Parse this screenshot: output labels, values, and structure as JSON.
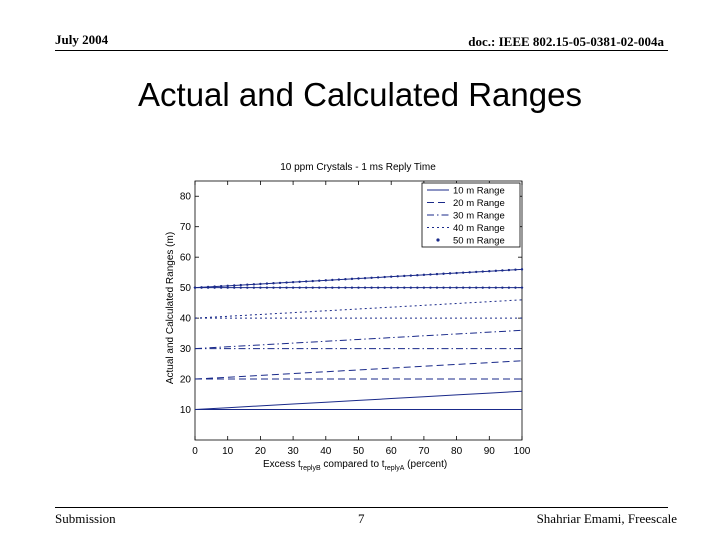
{
  "header": {
    "date": "July 2004",
    "doc": "doc.: IEEE 802.15-05-0381-02-004a"
  },
  "slide_title": "Actual and Calculated Ranges",
  "footer": {
    "left": "Submission",
    "page": "7",
    "author": "Shahriar Emami, Freescale"
  },
  "colors": {
    "line": "#1a2a8a",
    "axis": "#000000"
  },
  "chart_data": {
    "type": "line",
    "title": "10 ppm Crystals - 1 ms Reply Time",
    "xlabel_main": "Excess t",
    "xlabel_sub1": "replyB",
    "xlabel_mid": " compared to t",
    "xlabel_sub2": "replyA",
    "xlabel_end": " (percent)",
    "ylabel": "Actual and Calculated Ranges (m)",
    "xlim": [
      0,
      100
    ],
    "ylim": [
      0,
      85
    ],
    "xticks": [
      0,
      10,
      20,
      30,
      40,
      50,
      60,
      70,
      80,
      90,
      100
    ],
    "yticks": [
      10,
      20,
      30,
      40,
      50,
      60,
      70,
      80
    ],
    "legend_position": "top-right",
    "x": [
      0,
      10,
      20,
      30,
      40,
      50,
      60,
      70,
      80,
      90,
      100
    ],
    "series": [
      {
        "name": "10 m Range",
        "style": "solid",
        "actual": 10,
        "values": [
          10,
          10.6,
          11.2,
          11.8,
          12.4,
          13.0,
          13.6,
          14.2,
          14.8,
          15.4,
          16.0
        ]
      },
      {
        "name": "20 m Range",
        "style": "dashed",
        "actual": 20,
        "values": [
          20,
          20.6,
          21.2,
          21.8,
          22.4,
          23.0,
          23.6,
          24.2,
          24.8,
          25.4,
          26.0
        ]
      },
      {
        "name": "30 m Range",
        "style": "dashdot",
        "actual": 30,
        "values": [
          30,
          30.6,
          31.2,
          31.8,
          32.4,
          33.0,
          33.6,
          34.2,
          34.8,
          35.4,
          36.0
        ]
      },
      {
        "name": "40 m Range",
        "style": "dotted",
        "actual": 40,
        "values": [
          40,
          40.6,
          41.2,
          41.8,
          42.4,
          43.0,
          43.6,
          44.2,
          44.8,
          45.4,
          46.0
        ]
      },
      {
        "name": "50 m Range",
        "style": "dotmarker",
        "actual": 50,
        "values": [
          50,
          50.6,
          51.2,
          51.8,
          52.4,
          53.0,
          53.6,
          54.2,
          54.8,
          55.4,
          56.0
        ]
      }
    ]
  }
}
